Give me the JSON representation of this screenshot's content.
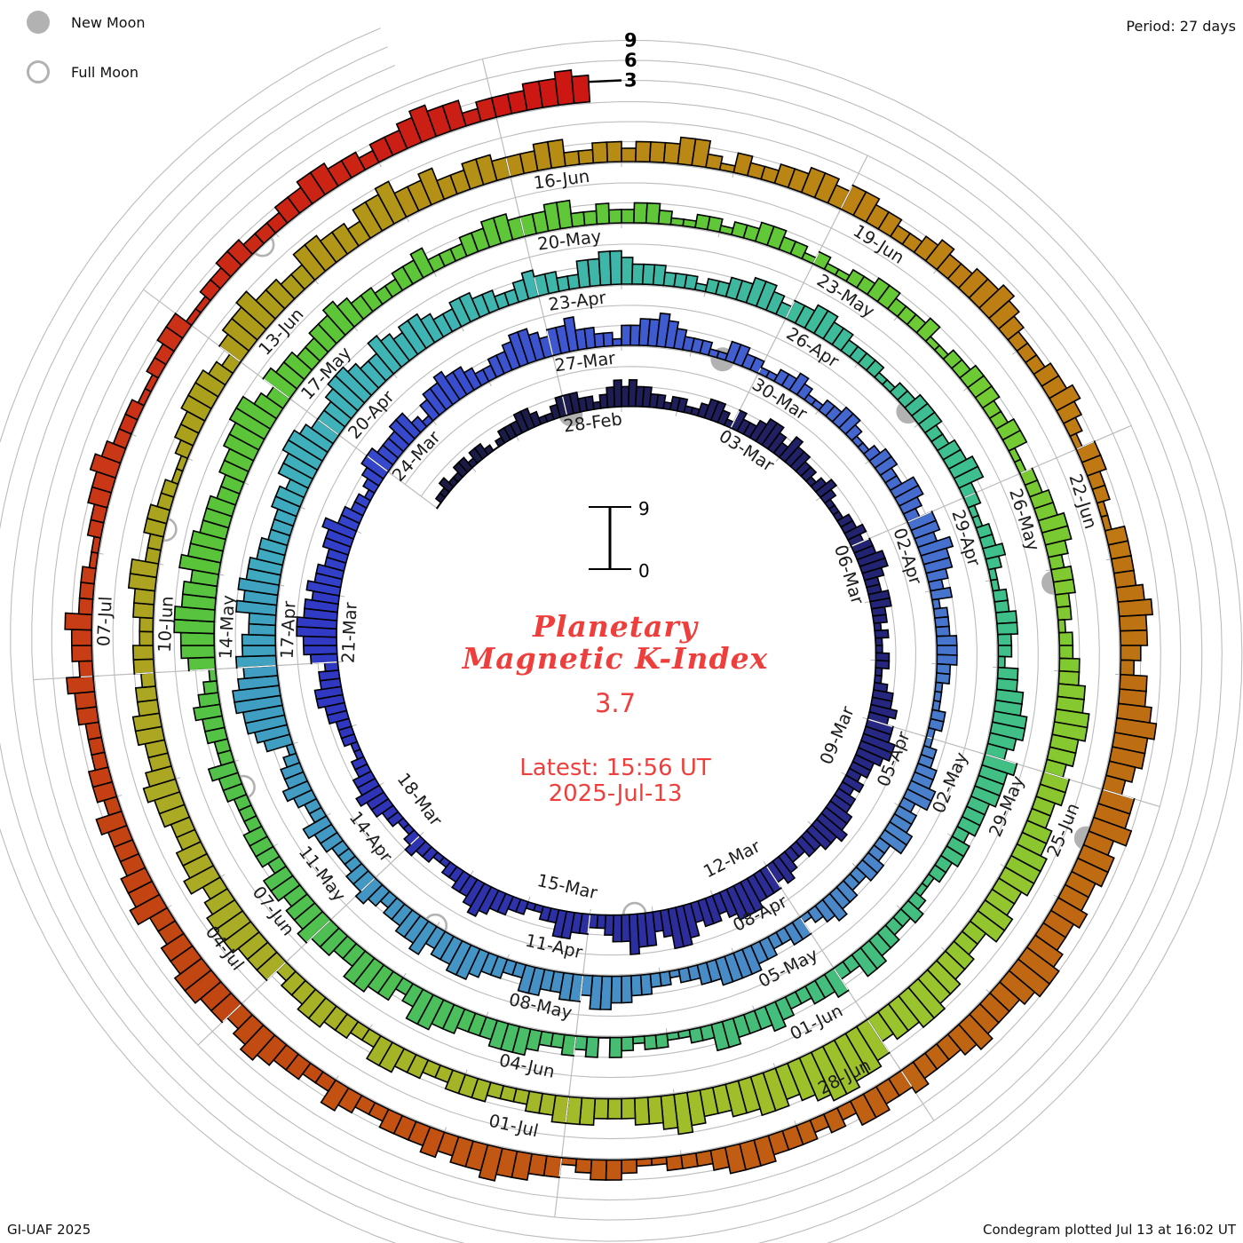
{
  "legend": {
    "new_moon": "New Moon",
    "full_moon": "Full Moon"
  },
  "period_label": "Period: 27 days",
  "footer_left": "GI-UAF 2025",
  "footer_right": "Condegram plotted Jul 13 at 16:02 UT",
  "center": {
    "title_line1": "Planetary",
    "title_line2": "Magnetic K-Index",
    "current_value": "3.7",
    "latest_line1": "Latest:  15:56 UT",
    "latest_line2": "2025-Jul-13"
  },
  "chart_data": {
    "type": "spiral-bar-condegram",
    "title": "Planetary Magnetic K-Index",
    "period_days": 27,
    "k_axis_range": [
      0,
      9
    ],
    "axis_tick_labels": [
      "3",
      "6",
      "9"
    ],
    "mini_scale": {
      "top": "9",
      "bottom": "0"
    },
    "start_date": "2025-02-25",
    "latest_reading": "2025-07-13 15:56 UT",
    "estimated_current_k": 3.7,
    "date_labels": [
      "28-Feb",
      "03-Mar",
      "06-Mar",
      "09-Mar",
      "12-Mar",
      "15-Mar",
      "18-Mar",
      "21-Mar",
      "24-Mar",
      "27-Mar",
      "30-Mar",
      "02-Apr",
      "05-Apr",
      "08-Apr",
      "11-Apr",
      "14-Apr",
      "17-Apr",
      "20-Apr",
      "23-Apr",
      "26-Apr",
      "29-Apr",
      "02-May",
      "05-May",
      "08-May",
      "11-May",
      "14-May",
      "17-May",
      "20-May",
      "23-May",
      "26-May",
      "29-May",
      "01-Jun",
      "04-Jun",
      "07-Jun",
      "10-Jun",
      "13-Jun",
      "16-Jun",
      "19-Jun",
      "22-Jun",
      "25-Jun",
      "28-Jun",
      "01-Jul",
      "04-Jul",
      "07-Jul"
    ],
    "days": [
      {
        "d": "25-Feb",
        "k": "01121122"
      },
      {
        "d": "26-Feb",
        "k": "12210122"
      },
      {
        "d": "27-Feb",
        "k": "23321123"
      },
      {
        "d": "28-Feb",
        "k": "33221234"
      },
      {
        "d": "01-Mar",
        "k": "34332212"
      },
      {
        "d": "02-Mar",
        "k": "21123321"
      },
      {
        "d": "03-Mar",
        "k": "32234432"
      },
      {
        "d": "04-Mar",
        "k": "43322123"
      },
      {
        "d": "05-Mar",
        "k": "21112232"
      },
      {
        "d": "06-Mar",
        "k": "33443223"
      },
      {
        "d": "07-Mar",
        "k": "32212112"
      },
      {
        "d": "08-Mar",
        "k": "21123343"
      },
      {
        "d": "09-Mar",
        "k": "44554332"
      },
      {
        "d": "10-Mar",
        "k": "32334454"
      },
      {
        "d": "11-Mar",
        "k": "43322343"
      },
      {
        "d": "12-Mar",
        "k": "44455543"
      },
      {
        "d": "13-Mar",
        "k": "44356643"
      },
      {
        "d": "14-Mar",
        "k": "55644322"
      },
      {
        "d": "15-Mar",
        "k": "33442211"
      },
      {
        "d": "16-Mar",
        "k": "22334543"
      },
      {
        "d": "17-Mar",
        "k": "32211223"
      },
      {
        "d": "18-Mar",
        "k": "21122334"
      },
      {
        "d": "19-Mar",
        "k": "33221122"
      },
      {
        "d": "20-Mar",
        "k": "23344332"
      },
      {
        "d": "21-Mar",
        "k": "45566554"
      },
      {
        "d": "22-Mar",
        "k": "54433445"
      },
      {
        "d": "23-Mar",
        "k": "33221234"
      },
      {
        "d": "24-Mar",
        "k": "43334421"
      },
      {
        "d": "25-Mar",
        "k": "34454432"
      },
      {
        "d": "26-Mar",
        "k": "23345543"
      },
      {
        "d": "27-Mar",
        "k": "44533221"
      },
      {
        "d": "28-Mar",
        "k": "33445432"
      },
      {
        "d": "29-Mar",
        "k": "22113322"
      },
      {
        "d": "30-Mar",
        "k": "11223211"
      },
      {
        "d": "31-Mar",
        "k": "22332112"
      },
      {
        "d": "01-Apr",
        "k": "33224432"
      },
      {
        "d": "02-Apr",
        "k": "44354432"
      },
      {
        "d": "03-Apr",
        "k": "31222333"
      },
      {
        "d": "04-Apr",
        "k": "22111221"
      },
      {
        "d": "05-Apr",
        "k": "12233442"
      },
      {
        "d": "06-Apr",
        "k": "33442233"
      },
      {
        "d": "07-Apr",
        "k": "22334321"
      },
      {
        "d": "08-Apr",
        "k": "33223344"
      },
      {
        "d": "09-Apr",
        "k": "44332212"
      },
      {
        "d": "10-Apr",
        "k": "23344553"
      },
      {
        "d": "11-Apr",
        "k": "44334422"
      },
      {
        "d": "12-Apr",
        "k": "33455443"
      },
      {
        "d": "13-Apr",
        "k": "54433234"
      },
      {
        "d": "14-Apr",
        "k": "33222334"
      },
      {
        "d": "15-Apr",
        "k": "22343321"
      },
      {
        "d": "16-Apr",
        "k": "45667765"
      },
      {
        "d": "17-Apr",
        "k": "65544656"
      },
      {
        "d": "18-Apr",
        "k": "55443334"
      },
      {
        "d": "19-Apr",
        "k": "43556654"
      },
      {
        "d": "20-Apr",
        "k": "44566544"
      },
      {
        "d": "21-Apr",
        "k": "65455433"
      },
      {
        "d": "22-Apr",
        "k": "44332234"
      },
      {
        "d": "23-Apr",
        "k": "33224455"
      },
      {
        "d": "24-Apr",
        "k": "43332221"
      },
      {
        "d": "25-Apr",
        "k": "22334432"
      },
      {
        "d": "26-Apr",
        "k": "33443322"
      },
      {
        "d": "27-Apr",
        "k": "22112233"
      },
      {
        "d": "28-Apr",
        "k": "32233442"
      },
      {
        "d": "29-Apr",
        "k": "21122321"
      },
      {
        "d": "30-Apr",
        "k": "12233221"
      },
      {
        "d": "01-May",
        "k": "33445543"
      },
      {
        "d": "02-May",
        "k": "54443332"
      },
      {
        "d": "03-May",
        "k": "33221123"
      },
      {
        "d": "04-May",
        "k": "22334422"
      },
      {
        "d": "05-May",
        "k": "43322343"
      },
      {
        "d": "06-May",
        "k": "33442211"
      },
      {
        "d": "07-May",
        "k": "22123032"
      },
      {
        "d": "08-May",
        "k": "32234443"
      },
      {
        "d": "09-May",
        "k": "33445532"
      },
      {
        "d": "10-May",
        "k": "44553344"
      },
      {
        "d": "11-May",
        "k": "54434423"
      },
      {
        "d": "12-May",
        "k": "33222334"
      },
      {
        "d": "13-May",
        "k": "22334321"
      },
      {
        "d": "14-May",
        "k": "45566554"
      },
      {
        "d": "15-May",
        "k": "65544433"
      },
      {
        "d": "16-May",
        "k": "44556643"
      },
      {
        "d": "17-May",
        "k": "54433445"
      },
      {
        "d": "18-May",
        "k": "43322334"
      },
      {
        "d": "19-May",
        "k": "22233443"
      },
      {
        "d": "20-May",
        "k": "33442232"
      },
      {
        "d": "21-May",
        "k": "23321122"
      },
      {
        "d": "22-May",
        "k": "12233221"
      },
      {
        "d": "23-May",
        "k": "21122332"
      },
      {
        "d": "24-May",
        "k": "22311223"
      },
      {
        "d": "25-May",
        "k": "33223311"
      },
      {
        "d": "26-May",
        "k": "22334432"
      },
      {
        "d": "27-May",
        "k": "33221223"
      },
      {
        "d": "28-May",
        "k": "34455443"
      },
      {
        "d": "29-May",
        "k": "44334455"
      },
      {
        "d": "30-May",
        "k": "54455334"
      },
      {
        "d": "31-May",
        "k": "45566554"
      },
      {
        "d": "01-Jun",
        "k": "67788765"
      },
      {
        "d": "02-Jun",
        "k": "66554456"
      },
      {
        "d": "03-Jun",
        "k": "54433344"
      },
      {
        "d": "04-Jun",
        "k": "43322233"
      },
      {
        "d": "05-Jun",
        "k": "32233442"
      },
      {
        "d": "06-Jun",
        "k": "23344332"
      },
      {
        "d": "07-Jun",
        "k": "44455543"
      },
      {
        "d": "08-Jun",
        "k": "54433445"
      },
      {
        "d": "09-Jun",
        "k": "43344332"
      },
      {
        "d": "10-Jun",
        "k": "33223344"
      },
      {
        "d": "11-Jun",
        "k": "22332211"
      },
      {
        "d": "12-Jun",
        "k": "23344432"
      },
      {
        "d": "13-Jun",
        "k": "45564433"
      },
      {
        "d": "14-Jun",
        "k": "55443556"
      },
      {
        "d": "15-Jun",
        "k": "44533443"
      },
      {
        "d": "16-Jun",
        "k": "33442233"
      },
      {
        "d": "17-Jun",
        "k": "23334421"
      },
      {
        "d": "18-Jun",
        "k": "32233443"
      },
      {
        "d": "19-Jun",
        "k": "44332234"
      },
      {
        "d": "20-Jun",
        "k": "33445432"
      },
      {
        "d": "21-Jun",
        "k": "22334321"
      },
      {
        "d": "22-Jun",
        "k": "33221133"
      },
      {
        "d": "23-Jun",
        "k": "33454432"
      },
      {
        "d": "24-Jun",
        "k": "44565543"
      },
      {
        "d": "25-Jun",
        "k": "55645544"
      },
      {
        "d": "26-Jun",
        "k": "54456654"
      },
      {
        "d": "27-Jun",
        "k": "44543334"
      },
      {
        "d": "28-Jun",
        "k": "33442323"
      },
      {
        "d": "29-Jun",
        "k": "33444322"
      },
      {
        "d": "30-Jun",
        "k": "21123321"
      },
      {
        "d": "01-Jul",
        "k": "33445443"
      },
      {
        "d": "02-Jul",
        "k": "43332234"
      },
      {
        "d": "03-Jul",
        "k": "22334543"
      },
      {
        "d": "04-Jul",
        "k": "44554433"
      },
      {
        "d": "05-Jul",
        "k": "54433342"
      },
      {
        "d": "06-Jul",
        "k": "33222334"
      },
      {
        "d": "07-Jul",
        "k": "23342221"
      },
      {
        "d": "08-Jul",
        "k": "12233432"
      },
      {
        "d": "09-Jul",
        "k": "22112233"
      },
      {
        "d": "10-Jul",
        "k": "11223322"
      },
      {
        "d": "11-Jul",
        "k": "23344332"
      },
      {
        "d": "12-Jul",
        "k": "33454423"
      },
      {
        "d": "13-Jul",
        "k": "334454"
      }
    ],
    "moons": [
      {
        "date": "28-Feb",
        "phase": "new",
        "t": 3.07
      },
      {
        "date": "14-Mar",
        "phase": "full",
        "t": 17.29
      },
      {
        "date": "29-Mar",
        "phase": "new",
        "t": 32.46
      },
      {
        "date": "13-Apr",
        "phase": "full",
        "t": 47.02
      },
      {
        "date": "27-Apr",
        "phase": "new",
        "t": 61.81
      },
      {
        "date": "12-May",
        "phase": "full",
        "t": 76.71
      },
      {
        "date": "27-May",
        "phase": "new",
        "t": 91.13
      },
      {
        "date": "11-Jun",
        "phase": "full",
        "t": 106.32
      },
      {
        "date": "25-Jun",
        "phase": "new",
        "t": 120.44
      },
      {
        "date": "10-Jul",
        "phase": "full",
        "t": 135.86
      }
    ],
    "colors": {
      "moon_gray": "#b2b2b2",
      "grid_gray": "#bcbcbc",
      "annotation_red": "#ee3f3c",
      "bar_outline": "#000000",
      "time_gradient_stops": [
        [
          1,
          "#1a1a45"
        ],
        [
          9,
          "#222270"
        ],
        [
          15,
          "#2b2b92"
        ],
        [
          24,
          "#3038c4"
        ],
        [
          27,
          "#3446cc"
        ],
        [
          30,
          "#3d55d0"
        ],
        [
          35,
          "#4468cf"
        ],
        [
          41,
          "#4a86c9"
        ],
        [
          51,
          "#3f9fc2"
        ],
        [
          54,
          "#3fb2bb"
        ],
        [
          58,
          "#3eb6a8"
        ],
        [
          63,
          "#3ec08d"
        ],
        [
          71,
          "#45bd78"
        ],
        [
          74,
          "#4cbf55"
        ],
        [
          80,
          "#5ac438"
        ],
        [
          87,
          "#62c838"
        ],
        [
          90,
          "#76cb32"
        ],
        [
          96,
          "#9cc32c"
        ],
        [
          105,
          "#ada522"
        ],
        [
          107,
          "#a8a21c"
        ],
        [
          112,
          "#b98a14"
        ],
        [
          117,
          "#bf7a12"
        ],
        [
          119,
          "#bd7012"
        ],
        [
          127,
          "#c25413"
        ],
        [
          129,
          "#c04810"
        ],
        [
          133,
          "#c93a17"
        ],
        [
          139,
          "#cc1413"
        ]
      ]
    }
  }
}
